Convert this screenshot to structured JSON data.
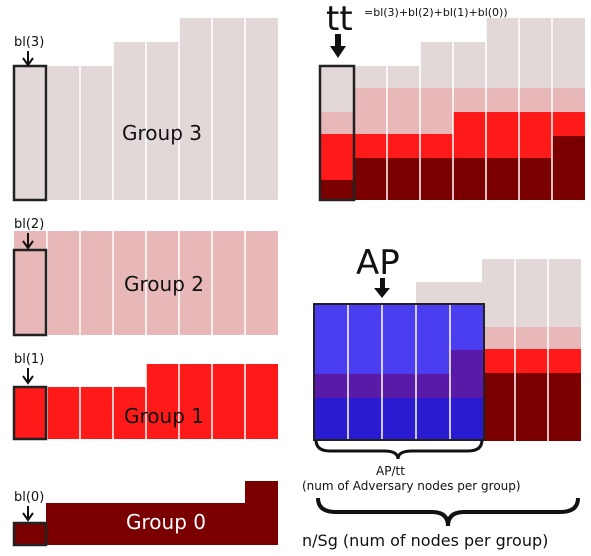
{
  "colors": {
    "group3": "#e3d8d8",
    "group2": "#e8b8b8",
    "group1": "#ff1a1a",
    "group0": "#7a0000",
    "ap_dark": "#2a1bd0",
    "ap_light": "#4a3ef0",
    "ap_mid": "#5a1aa8",
    "outline": "#222222"
  },
  "groups": {
    "group3": {
      "label": "Group 3",
      "bl_label": "bl(3)"
    },
    "group2": {
      "label": "Group 2",
      "bl_label": "bl(2)"
    },
    "group1": {
      "label": "Group 1",
      "bl_label": "bl(1)"
    },
    "group0": {
      "label": "Group 0",
      "bl_label": "bl(0)"
    }
  },
  "tt_panel": {
    "tt_label": "tt",
    "formula": "=bl(3)+bl(2)+bl(1)+bl(0))"
  },
  "ap_panel": {
    "ap_label": "AP",
    "ap_tt_label": "AP/tt",
    "ap_tt_desc": "(num of Adversary nodes per group)",
    "n_sg_label": "n/Sg (num of nodes per group)"
  }
}
